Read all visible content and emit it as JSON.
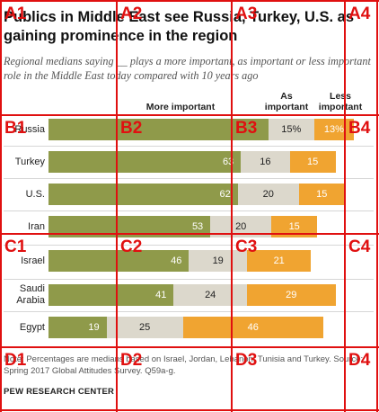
{
  "title": "Publics in Middle East see Russia, Turkey, U.S. as gaining prominence in the region",
  "subtitle": "Regional medians saying __ plays a more important, as important or less important role in the Middle East today compared with 10 years ago",
  "headers": {
    "more": "More important",
    "as": "As important",
    "less": "Less important"
  },
  "colors": {
    "more": "#8f9a4a",
    "as": "#dcd8cc",
    "less": "#f0a431",
    "grid": "#e01010"
  },
  "chart_data": {
    "type": "bar",
    "orientation": "horizontal",
    "stacked": true,
    "categories": [
      "Russia",
      "Turkey",
      "U.S.",
      "Iran",
      "Israel",
      "Saudi Arabia",
      "Egypt"
    ],
    "series": [
      {
        "name": "More important",
        "values": [
          null,
          63,
          62,
          53,
          46,
          41,
          19
        ]
      },
      {
        "name": "As important",
        "values": [
          15,
          16,
          20,
          20,
          19,
          24,
          25
        ]
      },
      {
        "name": "Less important",
        "values": [
          13,
          15,
          15,
          15,
          21,
          29,
          46
        ]
      }
    ],
    "display_labels": {
      "more": [
        "",
        "63",
        "62",
        "53",
        "46",
        "41",
        "19"
      ],
      "as": [
        "15%",
        "16",
        "20",
        "20",
        "19",
        "24",
        "25"
      ],
      "less": [
        "13%",
        "15",
        "15",
        "15",
        "21",
        "29",
        "46"
      ]
    }
  },
  "note": "Note: Percentages are medians based on Israel, Jordan, Lebanon, Tunisia and Turkey. Source: Spring 2017 Global Attitudes Survey. Q59a-g.",
  "brand": "PEW RESEARCH CENTER",
  "grid_labels": [
    "A1",
    "A2",
    "A3",
    "A4",
    "B1",
    "B2",
    "B3",
    "B4",
    "C1",
    "C2",
    "C3",
    "C4",
    "D1",
    "D2",
    "D3",
    "D4"
  ]
}
